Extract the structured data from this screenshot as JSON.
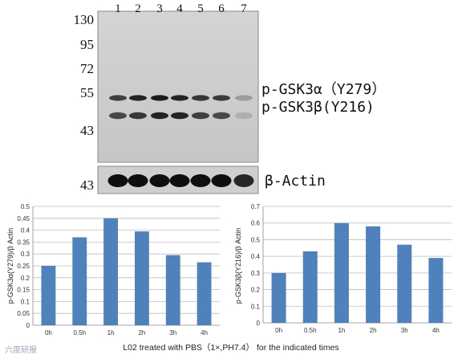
{
  "blot": {
    "lanes": [
      "1",
      "2",
      "3",
      "4",
      "5",
      "6",
      "7"
    ],
    "markers": [
      "130",
      "95",
      "72",
      "55",
      "43"
    ],
    "actin_marker": "43",
    "band1": "p-GSK3α（Y279）",
    "band2": "p-GSK3β(Y216)",
    "actin": "β-Actin"
  },
  "caption": "L02 treated with PBS（1×,PH7.4） for the indicated times",
  "watermark": "六度研报",
  "chart_data": [
    {
      "type": "bar",
      "categories": [
        "0h",
        "0.5h",
        "1h",
        "2h",
        "3h",
        "4h"
      ],
      "values": [
        0.25,
        0.37,
        0.45,
        0.395,
        0.295,
        0.265
      ],
      "ylabel": "p-GSK3α(Y279)/β Actin",
      "ylim": [
        0,
        0.5
      ],
      "yticks": [
        "0",
        "0.05",
        "0.1",
        "0.15",
        "0.2",
        "0.25",
        "0.3",
        "0.35",
        "0.4",
        "0.45",
        "0.5"
      ],
      "grid": true,
      "color": "#4f81bd"
    },
    {
      "type": "bar",
      "categories": [
        "0h",
        "0.5h",
        "1h",
        "2h",
        "3h",
        "4h"
      ],
      "values": [
        0.3,
        0.43,
        0.6,
        0.58,
        0.47,
        0.39
      ],
      "ylabel": "p-GSK3β(Y216)/β Actin",
      "ylim": [
        0,
        0.7
      ],
      "yticks": [
        "0",
        "0.1",
        "0.2",
        "0.3",
        "0.4",
        "0.5",
        "0.6",
        "0.7"
      ],
      "grid": true,
      "color": "#4f81bd"
    }
  ]
}
